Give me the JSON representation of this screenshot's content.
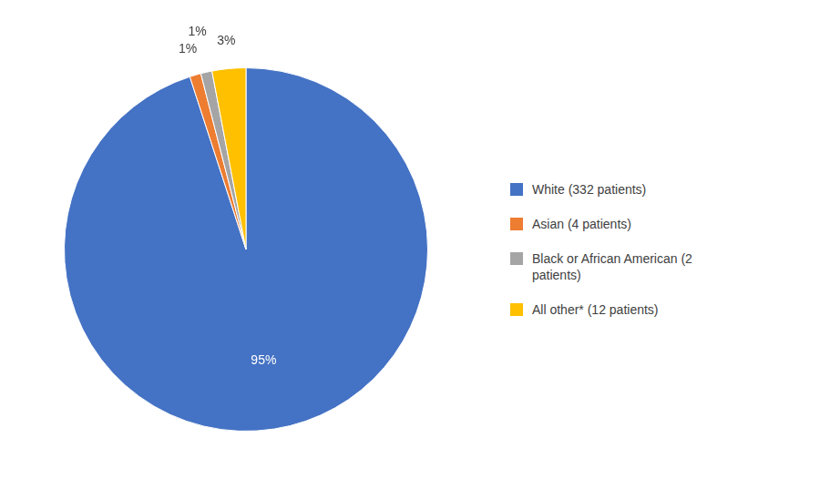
{
  "chart_data": {
    "type": "pie",
    "categories": [
      "White (332 patients)",
      "Asian (4 patients)",
      "Black or African American (2\n patients)",
      "All other* (12 patients)"
    ],
    "values": [
      95,
      1,
      1,
      3
    ],
    "value_labels": [
      "95%",
      "1%",
      "1%",
      "3%"
    ],
    "colors": [
      "#4472C4",
      "#ED7D31",
      "#A5A5A5",
      "#FFC000"
    ],
    "data_labels": true,
    "legend": "right"
  }
}
